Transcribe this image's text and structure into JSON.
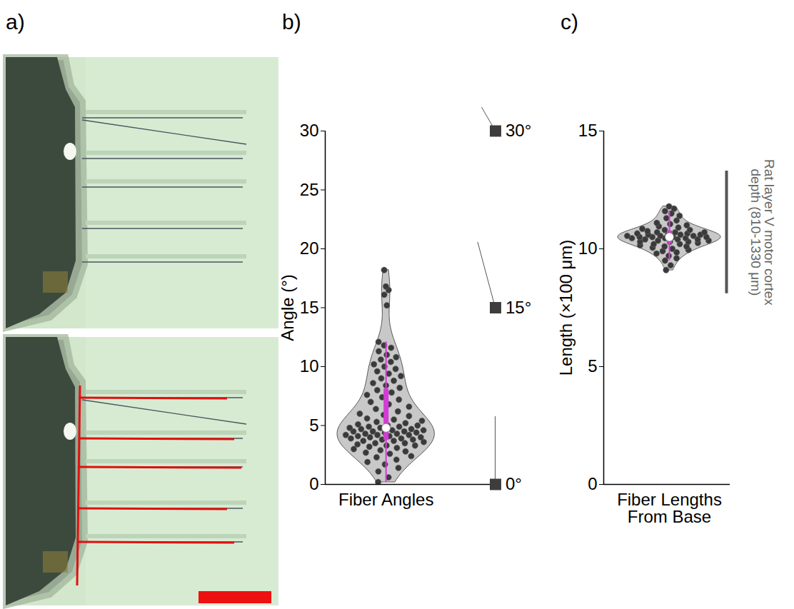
{
  "image_panel": {
    "panel": "a)"
  },
  "chart_data": [
    {
      "panel": "b)",
      "type": "violin",
      "color": "#c8c8c8",
      "y_label": "Angle (°)",
      "x_label": "Fiber Angles",
      "ylim": [
        0,
        30
      ],
      "yticks": [
        0,
        5,
        10,
        15,
        20,
        25,
        30
      ],
      "values": [
        0.2,
        0.6,
        1.1,
        1.4,
        1.7,
        1.9,
        2.1,
        2.3,
        2.4,
        2.6,
        2.7,
        2.8,
        2.9,
        3.0,
        3.1,
        3.2,
        3.3,
        3.3,
        3.4,
        3.5,
        3.5,
        3.6,
        3.7,
        3.7,
        3.8,
        3.8,
        3.9,
        3.9,
        4.0,
        4.0,
        4.1,
        4.1,
        4.2,
        4.2,
        4.2,
        4.3,
        4.3,
        4.4,
        4.4,
        4.5,
        4.5,
        4.5,
        4.6,
        4.6,
        4.7,
        4.7,
        4.8,
        4.8,
        4.9,
        4.9,
        5.0,
        5.0,
        5.1,
        5.2,
        5.3,
        5.4,
        5.5,
        5.6,
        5.8,
        5.9,
        6.0,
        6.2,
        6.4,
        6.6,
        6.8,
        7.0,
        7.2,
        7.4,
        7.6,
        7.8,
        8.0,
        8.2,
        8.4,
        8.6,
        8.8,
        9.0,
        9.2,
        9.4,
        9.6,
        9.8,
        10.0,
        10.2,
        10.4,
        10.6,
        10.8,
        11.0,
        11.3,
        11.6,
        11.8,
        12.1,
        15.2,
        16.1,
        16.5,
        16.8,
        18.2
      ],
      "annotations": [
        {
          "value": 30,
          "label": "30°"
        },
        {
          "value": 15,
          "label": "15°"
        },
        {
          "value": 0,
          "label": "0°"
        }
      ]
    },
    {
      "panel": "c)",
      "type": "violin",
      "color": "#c8c8c8",
      "y_label": "Length (×100 μm)",
      "x_label": "Fiber Lengths From Base",
      "ylim": [
        0,
        15
      ],
      "yticks": [
        0,
        5,
        10,
        15
      ],
      "values": [
        9.1,
        9.3,
        9.5,
        9.6,
        9.7,
        9.8,
        9.85,
        9.9,
        9.95,
        10.0,
        10.05,
        10.1,
        10.1,
        10.15,
        10.2,
        10.2,
        10.25,
        10.3,
        10.3,
        10.3,
        10.35,
        10.35,
        10.4,
        10.4,
        10.4,
        10.45,
        10.45,
        10.45,
        10.5,
        10.5,
        10.5,
        10.5,
        10.55,
        10.55,
        10.55,
        10.6,
        10.6,
        10.6,
        10.6,
        10.65,
        10.65,
        10.7,
        10.7,
        10.7,
        10.75,
        10.8,
        10.8,
        10.85,
        10.9,
        10.95,
        11.0,
        11.05,
        11.1,
        11.2,
        11.3,
        11.4,
        11.5,
        11.6,
        11.7,
        11.8
      ],
      "reference_range": {
        "label": "Rat layer V motor cortex depth (810-1330 μm)",
        "values": [
          8.1,
          13.3
        ]
      }
    }
  ]
}
